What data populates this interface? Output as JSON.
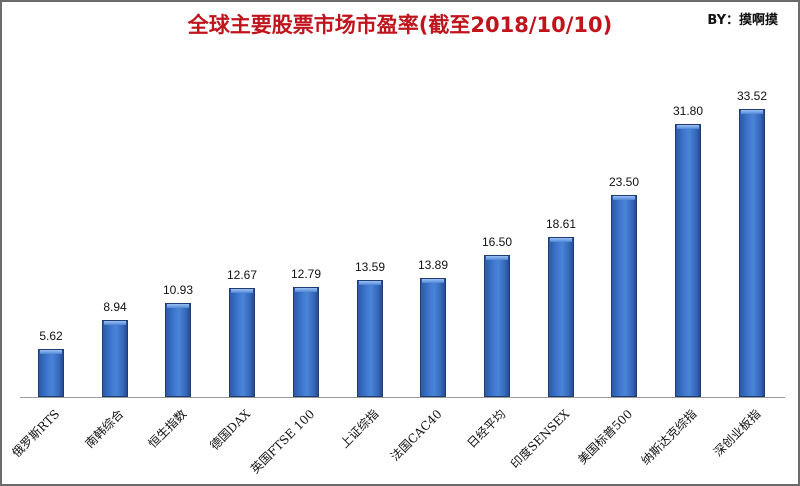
{
  "header": {
    "title": "全球主要股票市场市盈率(截至2018/10/10)",
    "byline": "BY：摸啊摸"
  },
  "colors": {
    "title": "#c0141c",
    "bar": "#3a70c4",
    "bar_border": "#1f3d73",
    "axis": "#9a9a9a",
    "frame": "#6b6b6b"
  },
  "chart_data": {
    "type": "bar",
    "title": "全球主要股票市场市盈率(截至2018/10/10)",
    "subtitle": "BY：摸啊摸",
    "xlabel": "",
    "ylabel": "",
    "categories": [
      "俄罗斯RTS",
      "南韩综合",
      "恒生指数",
      "德国DAX",
      "英国FTSE 100",
      "上证综指",
      "法国CAC40",
      "日经平均",
      "印度SENSEX",
      "美国标普500",
      "纳斯达克综指",
      "深创业板指"
    ],
    "values": [
      5.62,
      8.94,
      10.93,
      12.67,
      12.79,
      13.59,
      13.89,
      16.5,
      18.61,
      23.5,
      31.8,
      33.52
    ],
    "value_labels": [
      "5.62",
      "8.94",
      "10.93",
      "12.67",
      "12.79",
      "13.59",
      "13.89",
      "16.50",
      "18.61",
      "23.50",
      "31.80",
      "33.52"
    ],
    "ylim": [
      0,
      33.52
    ],
    "grid": false,
    "legend": "none",
    "y_axis_visible": false,
    "data_labels": true
  }
}
